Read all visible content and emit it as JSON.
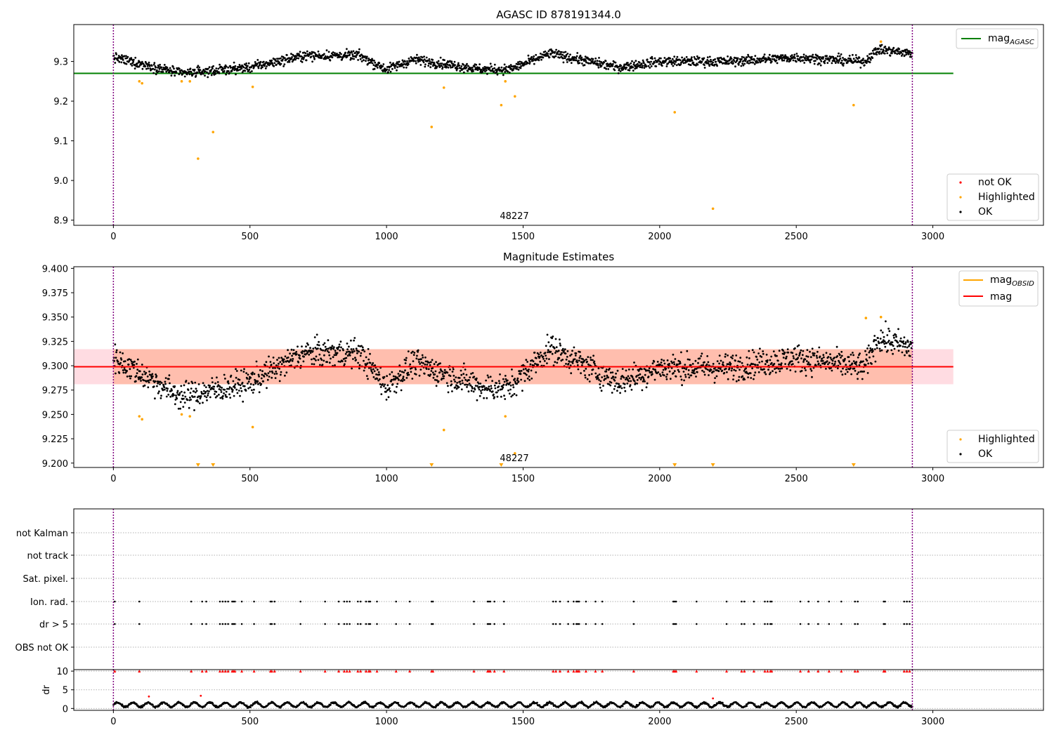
{
  "figure": {
    "series_colors": {
      "ok": "#000000",
      "highlighted": "#ffa500",
      "not_ok": "#ff0000",
      "agasc_line": "#008000",
      "obsid_line": "#ffa500",
      "mag_line": "#ff0000",
      "band_obsid": "#ffa07a",
      "band_mag": "#ffc0cb",
      "marker_line": "#800080"
    }
  },
  "chart_data": [
    {
      "id": "top",
      "type": "scatter",
      "title": "AGASC ID 878191344.0",
      "xlim": [
        -145,
        3405
      ],
      "ylim": [
        8.887,
        9.393
      ],
      "x_ticks": [
        "0",
        "500",
        "1000",
        "1500",
        "2000",
        "2500",
        "3000"
      ],
      "y_ticks": [
        "8.9",
        "9.0",
        "9.1",
        "9.2",
        "9.3"
      ],
      "obsid_label": "48227",
      "obsid_boundaries": [
        0,
        2925
      ],
      "mag_agasc": 9.27,
      "mag_agasc_x_range": [
        -145,
        3075
      ],
      "ok_baseline": 9.3,
      "ok_trend": [
        [
          0,
          9.31
        ],
        [
          250,
          9.27
        ],
        [
          500,
          9.285
        ],
        [
          700,
          9.315
        ],
        [
          900,
          9.315
        ],
        [
          1000,
          9.28
        ],
        [
          1100,
          9.305
        ],
        [
          1350,
          9.28
        ],
        [
          1450,
          9.28
        ],
        [
          1600,
          9.32
        ],
        [
          1850,
          9.285
        ],
        [
          2000,
          9.3
        ],
        [
          2250,
          9.3
        ],
        [
          2500,
          9.31
        ],
        [
          2750,
          9.3
        ],
        [
          2800,
          9.33
        ],
        [
          2925,
          9.32
        ]
      ],
      "highlighted_points": [
        [
          95,
          9.25
        ],
        [
          105,
          9.245
        ],
        [
          250,
          9.25
        ],
        [
          280,
          9.25
        ],
        [
          310,
          9.055
        ],
        [
          365,
          9.122
        ],
        [
          510,
          9.236
        ],
        [
          1165,
          9.135
        ],
        [
          1210,
          9.234
        ],
        [
          1420,
          9.19
        ],
        [
          1435,
          9.25
        ],
        [
          1470,
          9.212
        ],
        [
          2055,
          9.172
        ],
        [
          2195,
          8.929
        ],
        [
          2710,
          9.19
        ],
        [
          2810,
          9.35
        ]
      ],
      "legend_upper": [
        {
          "label": "mag",
          "sub": "AGASC"
        }
      ],
      "legend_lower": [
        {
          "label": "not OK"
        },
        {
          "label": "Highlighted"
        },
        {
          "label": "OK"
        }
      ]
    },
    {
      "id": "middle",
      "type": "scatter",
      "title": "Magnitude Estimates",
      "xlim": [
        -145,
        3405
      ],
      "ylim": [
        9.1955,
        9.4017
      ],
      "x_ticks": [
        "0",
        "500",
        "1000",
        "1500",
        "2000",
        "2500",
        "3000"
      ],
      "y_ticks": [
        "9.200",
        "9.225",
        "9.250",
        "9.275",
        "9.300",
        "9.325",
        "9.350",
        "9.375",
        "9.400"
      ],
      "obsid_label": "48227",
      "obsid_boundaries": [
        0,
        2925
      ],
      "mag_obsid": 9.299,
      "mag_obsid_band": [
        9.281,
        9.317
      ],
      "mag_obsid_x_range": [
        0,
        2925
      ],
      "mag": 9.299,
      "mag_band": [
        9.281,
        9.317
      ],
      "mag_x_range": [
        -145,
        3075
      ],
      "highlighted_points": [
        [
          95,
          9.248
        ],
        [
          105,
          9.245
        ],
        [
          250,
          9.25
        ],
        [
          280,
          9.248
        ],
        [
          510,
          9.237
        ],
        [
          1210,
          9.234
        ],
        [
          1435,
          9.248
        ],
        [
          1470,
          9.21
        ],
        [
          2755,
          9.349
        ],
        [
          2810,
          9.35
        ]
      ],
      "clipped_points_x": [
        310,
        365,
        1165,
        1420,
        2055,
        2195,
        2710
      ],
      "legend_upper": [
        {
          "label": "mag",
          "sub": "OBSID"
        },
        {
          "label": "mag"
        }
      ],
      "legend_lower": [
        {
          "label": "Highlighted"
        },
        {
          "label": "OK"
        }
      ]
    },
    {
      "id": "flags",
      "type": "scatter",
      "xlim": [
        -145,
        3405
      ],
      "y_categories": [
        "OBS not OK",
        "dr > 5",
        "Ion. rad.",
        "Sat. pixel.",
        "not track",
        "not Kalman"
      ],
      "flag_x": [
        5,
        95,
        285,
        325,
        340,
        390,
        400,
        410,
        420,
        435,
        440,
        445,
        470,
        515,
        575,
        580,
        590,
        685,
        775,
        825,
        845,
        855,
        865,
        895,
        905,
        925,
        935,
        940,
        965,
        1035,
        1085,
        1165,
        1170,
        1320,
        1370,
        1375,
        1380,
        1395,
        1430,
        1610,
        1620,
        1635,
        1665,
        1685,
        1695,
        1700,
        1705,
        1730,
        1765,
        1790,
        1905,
        2050,
        2055,
        2060,
        2135,
        2245,
        2300,
        2310,
        2345,
        2385,
        2395,
        2405,
        2410,
        2515,
        2545,
        2580,
        2620,
        2665,
        2715,
        2725,
        2820,
        2825,
        2895,
        2905,
        2915
      ]
    },
    {
      "id": "dr",
      "type": "scatter",
      "ylabel": "dr",
      "xlim": [
        -145,
        3405
      ],
      "ylim": [
        -0.5,
        10.4
      ],
      "x_ticks": [
        "0",
        "500",
        "1000",
        "1500",
        "2000",
        "2500",
        "3000"
      ],
      "y_ticks": [
        "0",
        "5",
        "10"
      ],
      "dr_outliers": [
        [
          130,
          3.2
        ],
        [
          320,
          3.4
        ],
        [
          2195,
          2.7
        ]
      ],
      "dr_capped_value": 10
    }
  ]
}
